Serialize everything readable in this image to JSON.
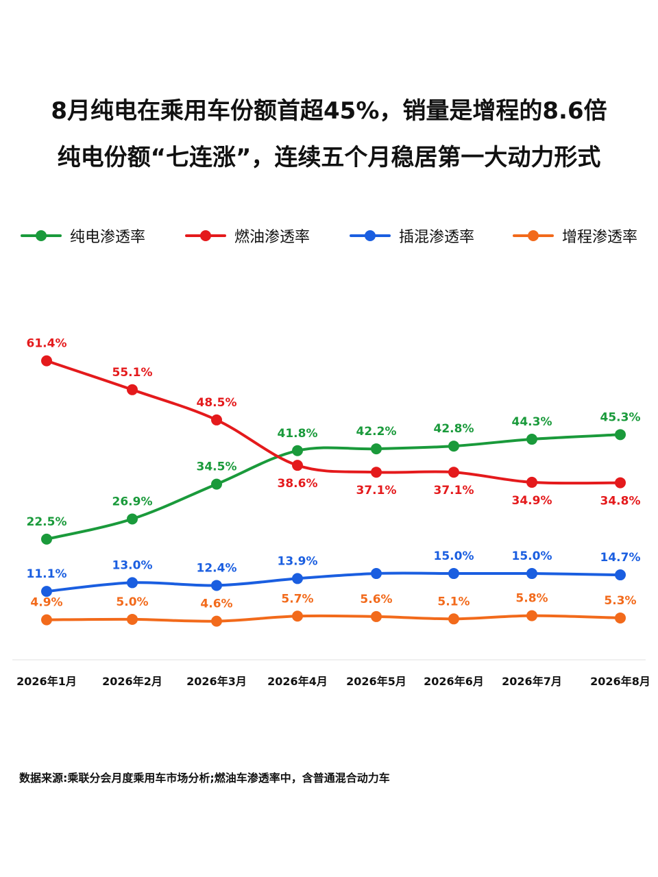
{
  "title": {
    "line1": "8月纯电在乘用车份额首超45%，销量是增程的8.6倍",
    "line2": "纯电份额“七连涨”，连续五个月稳居第一大动力形式"
  },
  "chart_data": {
    "type": "line",
    "categories": [
      "2026年1月",
      "2026年2月",
      "2026年3月",
      "2026年4月",
      "2026年5月",
      "2026年6月",
      "2026年7月",
      "2026年8月"
    ],
    "series": [
      {
        "name": "纯电渗透率",
        "color": "#1a9a3b",
        "values": [
          22.5,
          26.9,
          34.5,
          41.8,
          42.2,
          42.8,
          44.3,
          45.3
        ],
        "labels": [
          "22.5%",
          "26.9%",
          "34.5%",
          "41.8%",
          "42.2%",
          "42.8%",
          "44.3%",
          "45.3%"
        ]
      },
      {
        "name": "燃油渗透率",
        "color": "#e41a1c",
        "values": [
          61.4,
          55.1,
          48.5,
          38.6,
          37.1,
          37.1,
          34.9,
          34.8
        ],
        "labels": [
          "61.4%",
          "55.1%",
          "48.5%",
          "38.6%",
          "37.1%",
          "37.1%",
          "34.9%",
          "34.8%"
        ]
      },
      {
        "name": "插混渗透率",
        "color": "#1a5ee0",
        "values": [
          11.1,
          13.0,
          12.4,
          13.9,
          15.0,
          15.0,
          15.0,
          14.7
        ],
        "labels": [
          "11.1%",
          "13.0%",
          "12.4%",
          "13.9%",
          "",
          "15.0%",
          "15.0%",
          "14.7%"
        ]
      },
      {
        "name": "增程渗透率",
        "color": "#f26a1b",
        "values": [
          4.9,
          5.0,
          4.6,
          5.7,
          5.6,
          5.1,
          5.8,
          5.3
        ],
        "labels": [
          "4.9%",
          "5.0%",
          "4.6%",
          "5.7%",
          "5.6%",
          "5.1%",
          "5.8%",
          "5.3%"
        ]
      }
    ],
    "legend_position": "top",
    "grid": false
  },
  "footer": {
    "note": "数据来源:乘联分会月度乘用车市场分析;燃油车渗透率中，含普通混合动力车"
  }
}
